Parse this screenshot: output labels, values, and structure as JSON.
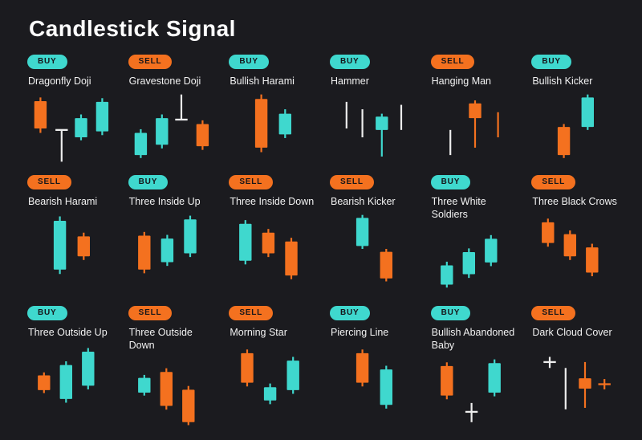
{
  "title": "Candlestick Signal",
  "colors": {
    "buy": "#3FD8CE",
    "sell": "#F4711F",
    "neutral": "#EDEDED"
  },
  "patterns": [
    {
      "signal": "buy",
      "badge": "BUY",
      "name": "Dragonfly Doji",
      "candles": [
        {
          "type": "candle",
          "dir": "sell",
          "x": 14,
          "body": [
            13,
            50
          ],
          "wick": [
            8,
            56
          ]
        },
        {
          "type": "doji",
          "dir": "neutral",
          "x": 38,
          "bar": 52,
          "wick": [
            52,
            95
          ]
        },
        {
          "type": "candle",
          "dir": "buy",
          "x": 60,
          "body": [
            36,
            62
          ],
          "wick": [
            31,
            66
          ]
        },
        {
          "type": "candle",
          "dir": "buy",
          "x": 84,
          "body": [
            14,
            54
          ],
          "wick": [
            9,
            59
          ]
        }
      ]
    },
    {
      "signal": "sell",
      "badge": "SELL",
      "name": "Gravestone Doji",
      "candles": [
        {
          "type": "candle",
          "dir": "buy",
          "x": 14,
          "body": [
            56,
            86
          ],
          "wick": [
            51,
            90
          ]
        },
        {
          "type": "candle",
          "dir": "buy",
          "x": 38,
          "body": [
            36,
            72
          ],
          "wick": [
            31,
            77
          ]
        },
        {
          "type": "doji",
          "dir": "neutral",
          "x": 60,
          "bar": 38,
          "wick": [
            4,
            38
          ]
        },
        {
          "type": "candle",
          "dir": "sell",
          "x": 84,
          "body": [
            44,
            74
          ],
          "wick": [
            39,
            79
          ]
        }
      ]
    },
    {
      "signal": "buy",
      "badge": "BUY",
      "name": "Bullish Harami",
      "candles": [
        {
          "type": "candle",
          "dir": "sell",
          "x": 36,
          "body": [
            10,
            76
          ],
          "wick": [
            4,
            82
          ]
        },
        {
          "type": "candle",
          "dir": "buy",
          "x": 63,
          "body": [
            30,
            58
          ],
          "wick": [
            24,
            63
          ]
        }
      ]
    },
    {
      "signal": "buy",
      "badge": "BUY",
      "name": "Hammer",
      "candles": [
        {
          "type": "line",
          "dir": "neutral",
          "x": 18,
          "wick": [
            14,
            50
          ]
        },
        {
          "type": "line",
          "dir": "neutral",
          "x": 36,
          "wick": [
            24,
            62
          ]
        },
        {
          "type": "candle",
          "dir": "buy",
          "x": 58,
          "body": [
            34,
            52
          ],
          "wick": [
            30,
            88
          ]
        },
        {
          "type": "line",
          "dir": "neutral",
          "x": 80,
          "wick": [
            18,
            52
          ]
        }
      ]
    },
    {
      "signal": "sell",
      "badge": "SELL",
      "name": "Hanging Man",
      "candles": [
        {
          "type": "line",
          "dir": "neutral",
          "x": 22,
          "wick": [
            52,
            86
          ]
        },
        {
          "type": "candle",
          "dir": "sell",
          "x": 50,
          "body": [
            16,
            36
          ],
          "wick": [
            12,
            76
          ]
        },
        {
          "type": "line",
          "dir": "sell",
          "x": 76,
          "wick": [
            28,
            62
          ]
        }
      ]
    },
    {
      "signal": "buy",
      "badge": "BUY",
      "name": "Bullish Kicker",
      "candles": [
        {
          "type": "candle",
          "dir": "sell",
          "x": 36,
          "body": [
            48,
            86
          ],
          "wick": [
            44,
            90
          ]
        },
        {
          "type": "candle",
          "dir": "buy",
          "x": 63,
          "body": [
            8,
            48
          ],
          "wick": [
            4,
            52
          ]
        }
      ]
    },
    {
      "signal": "sell",
      "badge": "SELL",
      "name": "Bearish Harami",
      "candles": [
        {
          "type": "candle",
          "dir": "buy",
          "x": 36,
          "body": [
            12,
            78
          ],
          "wick": [
            6,
            84
          ]
        },
        {
          "type": "candle",
          "dir": "sell",
          "x": 63,
          "body": [
            33,
            60
          ],
          "wick": [
            28,
            65
          ]
        }
      ]
    },
    {
      "signal": "buy",
      "badge": "BUY",
      "name": "Three Inside Up",
      "candles": [
        {
          "type": "candle",
          "dir": "sell",
          "x": 18,
          "body": [
            32,
            78
          ],
          "wick": [
            27,
            83
          ]
        },
        {
          "type": "candle",
          "dir": "buy",
          "x": 44,
          "body": [
            36,
            68
          ],
          "wick": [
            31,
            73
          ]
        },
        {
          "type": "candle",
          "dir": "buy",
          "x": 70,
          "body": [
            10,
            56
          ],
          "wick": [
            5,
            61
          ]
        }
      ]
    },
    {
      "signal": "sell",
      "badge": "SELL",
      "name": "Three Inside Down",
      "candles": [
        {
          "type": "candle",
          "dir": "buy",
          "x": 18,
          "body": [
            16,
            66
          ],
          "wick": [
            11,
            71
          ]
        },
        {
          "type": "candle",
          "dir": "sell",
          "x": 44,
          "body": [
            28,
            56
          ],
          "wick": [
            23,
            61
          ]
        },
        {
          "type": "candle",
          "dir": "sell",
          "x": 70,
          "body": [
            40,
            86
          ],
          "wick": [
            35,
            91
          ]
        }
      ]
    },
    {
      "signal": "sell",
      "badge": "SELL",
      "name": "Bearish Kicker",
      "candles": [
        {
          "type": "candle",
          "dir": "buy",
          "x": 36,
          "body": [
            8,
            46
          ],
          "wick": [
            4,
            50
          ]
        },
        {
          "type": "candle",
          "dir": "sell",
          "x": 63,
          "body": [
            54,
            90
          ],
          "wick": [
            50,
            94
          ]
        }
      ]
    },
    {
      "signal": "buy",
      "badge": "BUY",
      "name": "Three White Soldiers",
      "candles": [
        {
          "type": "candle",
          "dir": "buy",
          "x": 18,
          "body": [
            56,
            82
          ],
          "wick": [
            51,
            86
          ]
        },
        {
          "type": "candle",
          "dir": "buy",
          "x": 43,
          "body": [
            38,
            68
          ],
          "wick": [
            33,
            73
          ]
        },
        {
          "type": "candle",
          "dir": "buy",
          "x": 68,
          "body": [
            20,
            52
          ],
          "wick": [
            15,
            57
          ]
        }
      ]
    },
    {
      "signal": "sell",
      "badge": "SELL",
      "name": "Three Black Crows",
      "candles": [
        {
          "type": "candle",
          "dir": "sell",
          "x": 18,
          "body": [
            14,
            42
          ],
          "wick": [
            9,
            47
          ]
        },
        {
          "type": "candle",
          "dir": "sell",
          "x": 43,
          "body": [
            30,
            60
          ],
          "wick": [
            25,
            65
          ]
        },
        {
          "type": "candle",
          "dir": "sell",
          "x": 68,
          "body": [
            48,
            82
          ],
          "wick": [
            43,
            87
          ]
        }
      ]
    },
    {
      "signal": "buy",
      "badge": "BUY",
      "name": "Three Outside Up",
      "candles": [
        {
          "type": "candle",
          "dir": "sell",
          "x": 18,
          "body": [
            44,
            64
          ],
          "wick": [
            40,
            68
          ]
        },
        {
          "type": "candle",
          "dir": "buy",
          "x": 43,
          "body": [
            30,
            76
          ],
          "wick": [
            25,
            81
          ]
        },
        {
          "type": "candle",
          "dir": "buy",
          "x": 68,
          "body": [
            12,
            58
          ],
          "wick": [
            7,
            63
          ]
        }
      ]
    },
    {
      "signal": "sell",
      "badge": "SELL",
      "name": "Three Outside Down",
      "candles": [
        {
          "type": "candle",
          "dir": "buy",
          "x": 18,
          "body": [
            30,
            50
          ],
          "wick": [
            26,
            54
          ]
        },
        {
          "type": "candle",
          "dir": "sell",
          "x": 43,
          "body": [
            22,
            68
          ],
          "wick": [
            17,
            73
          ]
        },
        {
          "type": "candle",
          "dir": "sell",
          "x": 68,
          "body": [
            46,
            90
          ],
          "wick": [
            41,
            94
          ]
        }
      ]
    },
    {
      "signal": "sell",
      "badge": "SELL",
      "name": "Morning Star",
      "candles": [
        {
          "type": "candle",
          "dir": "sell",
          "x": 20,
          "body": [
            14,
            54
          ],
          "wick": [
            9,
            59
          ]
        },
        {
          "type": "candle",
          "dir": "buy",
          "x": 46,
          "body": [
            60,
            78
          ],
          "wick": [
            55,
            83
          ]
        },
        {
          "type": "candle",
          "dir": "buy",
          "x": 72,
          "body": [
            24,
            64
          ],
          "wick": [
            19,
            69
          ]
        }
      ]
    },
    {
      "signal": "buy",
      "badge": "BUY",
      "name": "Piercing Line",
      "candles": [
        {
          "type": "candle",
          "dir": "sell",
          "x": 36,
          "body": [
            14,
            54
          ],
          "wick": [
            9,
            59
          ]
        },
        {
          "type": "candle",
          "dir": "buy",
          "x": 63,
          "body": [
            36,
            84
          ],
          "wick": [
            31,
            89
          ]
        }
      ]
    },
    {
      "signal": "buy",
      "badge": "BUY",
      "name": "Bullish Abandoned Baby",
      "candles": [
        {
          "type": "candle",
          "dir": "sell",
          "x": 18,
          "body": [
            14,
            54
          ],
          "wick": [
            9,
            59
          ]
        },
        {
          "type": "doji",
          "dir": "neutral",
          "x": 46,
          "bar": 76,
          "wick": [
            64,
            90
          ]
        },
        {
          "type": "candle",
          "dir": "buy",
          "x": 72,
          "body": [
            10,
            50
          ],
          "wick": [
            5,
            55
          ]
        }
      ]
    },
    {
      "signal": "sell",
      "badge": "SELL",
      "name": "Dark Cloud Cover",
      "candles": [
        {
          "type": "doji",
          "dir": "neutral",
          "x": 20,
          "bar": 26,
          "wick": [
            19,
            34
          ]
        },
        {
          "type": "line",
          "dir": "neutral",
          "x": 38,
          "wick": [
            34,
            90
          ]
        },
        {
          "type": "candle",
          "dir": "sell",
          "x": 60,
          "body": [
            48,
            62
          ],
          "wick": [
            26,
            88
          ]
        },
        {
          "type": "doji",
          "dir": "sell",
          "x": 82,
          "bar": 56,
          "wick": [
            49,
            63
          ]
        }
      ]
    }
  ]
}
